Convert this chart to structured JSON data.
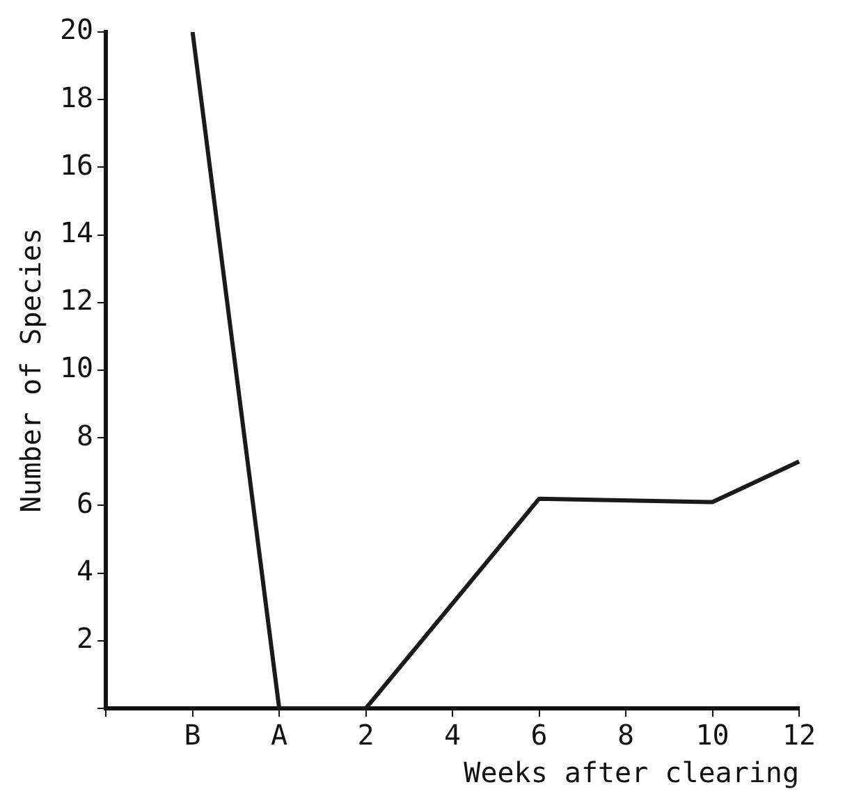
{
  "chart_data": {
    "type": "line",
    "xlabel": "Weeks after clearing",
    "ylabel": "Number of Species",
    "categories": [
      null,
      "B",
      "A",
      "2",
      "4",
      "6",
      "8",
      "10",
      "12"
    ],
    "series": [
      {
        "color": "#1a1a1a",
        "values": [
          null,
          20,
          0,
          0,
          null,
          6.2,
          null,
          6.1,
          7.3
        ]
      }
    ],
    "ylim": [
      0,
      20
    ],
    "yticks": [
      {
        "value": 0,
        "label": null
      },
      2,
      4,
      6,
      8,
      10,
      12,
      14,
      16,
      18,
      20
    ],
    "grid": false,
    "legend": false,
    "marker": "none",
    "line_style": "solid"
  }
}
